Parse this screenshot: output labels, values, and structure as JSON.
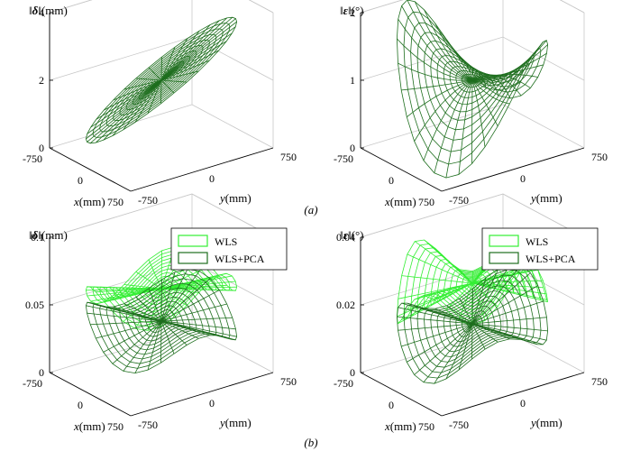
{
  "figure": {
    "caption_a": "(a)",
    "caption_b": "(b)"
  },
  "colors": {
    "dark_green": "#1e6e1e",
    "light_green": "#33ee33",
    "axis": "#000000",
    "grid": "#c8c8c8"
  },
  "chart_data": [
    {
      "id": "a-left",
      "type": "surface",
      "zlabel_symbol": "δ",
      "zlabel_unit": "(mm)",
      "xlabel": "x",
      "xunit": "(mm)",
      "ylabel": "y",
      "yunit": "(mm)",
      "xticks": [
        "-750",
        "0",
        "750"
      ],
      "yticks": [
        "-750",
        "0",
        "750"
      ],
      "zticks": [
        "0",
        "2",
        "4"
      ],
      "zlim": [
        0,
        4
      ],
      "series": [
        {
          "kind": "cone",
          "z_center": 2.0,
          "z_edge_min": 0.5,
          "z_edge_max": 3.5
        }
      ]
    },
    {
      "id": "a-right",
      "type": "surface",
      "zlabel_symbol": "ε",
      "zlabel_unit": "(°)",
      "xlabel": "x",
      "xunit": "(mm)",
      "ylabel": "y",
      "yunit": "(mm)",
      "xticks": [
        "-750",
        "0",
        "750"
      ],
      "yticks": [
        "-750",
        "0",
        "750"
      ],
      "zticks": [
        "0",
        "1",
        "2"
      ],
      "zlim": [
        0,
        2
      ],
      "series": [
        {
          "kind": "saddle",
          "z_center": 1.0
        }
      ]
    },
    {
      "id": "b-left",
      "type": "surface",
      "zlabel_symbol": "δ",
      "zlabel_unit": "(mm)",
      "xlabel": "x",
      "xunit": "(mm)",
      "ylabel": "y",
      "yunit": "(mm)",
      "xticks": [
        "-750",
        "0",
        "750"
      ],
      "yticks": [
        "-750",
        "0",
        "750"
      ],
      "zticks": [
        "0",
        "0.05",
        "0.1"
      ],
      "zlim": [
        0,
        0.1
      ],
      "legend": [
        "WLS",
        "WLS+PCA"
      ],
      "series": [
        {
          "name": "WLS",
          "kind": "wavy",
          "z_center": 0.06
        },
        {
          "name": "WLS+PCA",
          "kind": "wavy-low",
          "z_center": 0.04
        }
      ]
    },
    {
      "id": "b-right",
      "type": "surface",
      "zlabel_symbol": "ε",
      "zlabel_unit": "(°)",
      "xlabel": "x",
      "xunit": "(mm)",
      "ylabel": "y",
      "yunit": "(mm)",
      "xticks": [
        "-750",
        "0",
        "750"
      ],
      "yticks": [
        "-750",
        "0",
        "750"
      ],
      "zticks": [
        "0",
        "0.02",
        "0.04"
      ],
      "zlim": [
        0,
        0.04
      ],
      "legend": [
        "WLS",
        "WLS+PCA"
      ],
      "series": [
        {
          "name": "WLS",
          "kind": "bumpy",
          "z_center": 0.025
        },
        {
          "name": "WLS+PCA",
          "kind": "bumpy-low",
          "z_center": 0.015
        }
      ]
    }
  ]
}
